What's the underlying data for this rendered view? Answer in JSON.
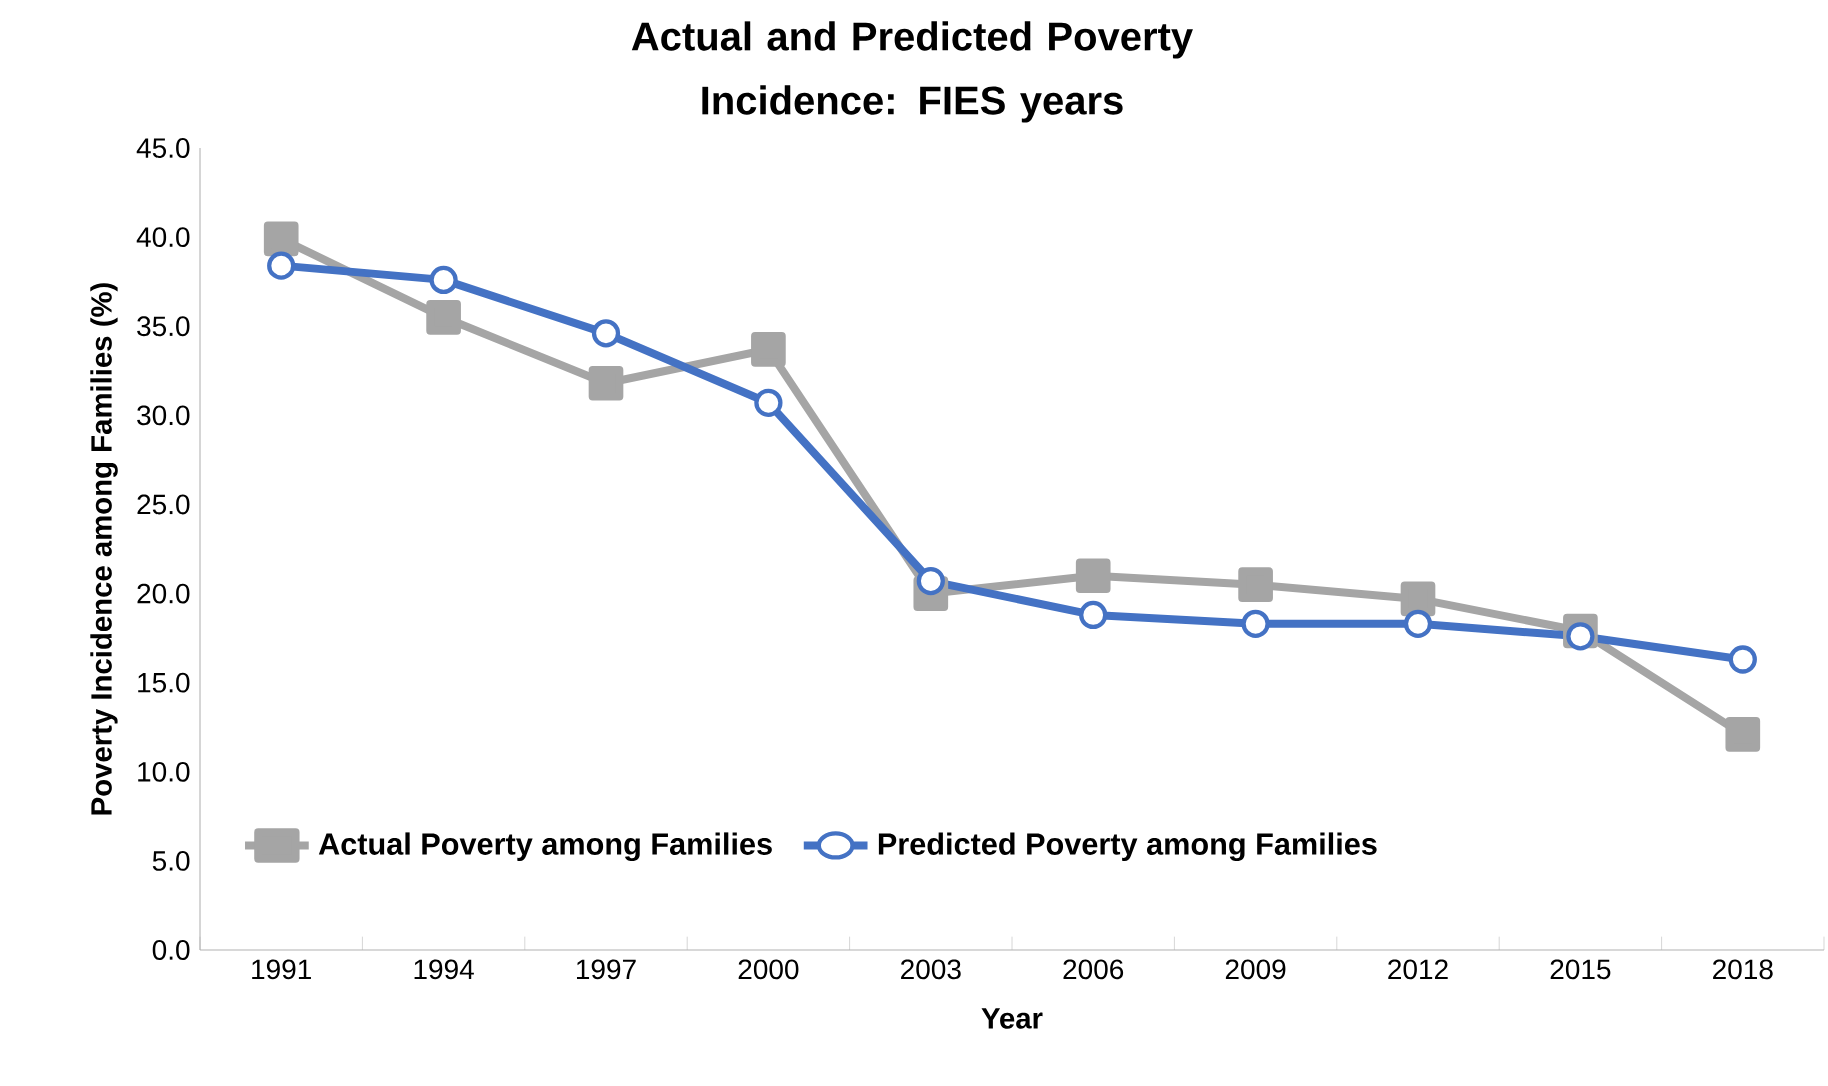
{
  "chart_data": {
    "type": "line",
    "title": "Actual and Predicted Poverty Incidence: FIES years",
    "xlabel": "Year",
    "ylabel": "Poverty Incidence among Families (%)",
    "categories": [
      "1991",
      "1994",
      "1997",
      "2000",
      "2003",
      "2006",
      "2009",
      "2012",
      "2015",
      "2018"
    ],
    "ylim": [
      0,
      45
    ],
    "yticks": [
      {
        "value": 0,
        "label": "0.0"
      },
      {
        "value": 5,
        "label": "5.0"
      },
      {
        "value": 10,
        "label": "10.0"
      },
      {
        "value": 15,
        "label": "15.0"
      },
      {
        "value": 20,
        "label": "20.0"
      },
      {
        "value": 25,
        "label": "25.0"
      },
      {
        "value": 30,
        "label": "30.0"
      },
      {
        "value": 35,
        "label": "35.0"
      },
      {
        "value": 40,
        "label": "40.0"
      },
      {
        "value": 45,
        "label": "45.0"
      }
    ],
    "series": [
      {
        "name": "Actual Poverty among Families",
        "color": "#a5a5a5",
        "marker": "square",
        "values": [
          39.9,
          35.5,
          31.8,
          33.7,
          20.0,
          21.0,
          20.5,
          19.7,
          17.9,
          12.1
        ]
      },
      {
        "name": "Predicted Poverty among Families",
        "color": "#4472c4",
        "marker": "circle",
        "values": [
          38.4,
          37.6,
          34.6,
          30.7,
          20.7,
          18.8,
          18.3,
          18.3,
          17.6,
          16.3
        ]
      }
    ],
    "legend": "bottom left",
    "grid": false
  }
}
